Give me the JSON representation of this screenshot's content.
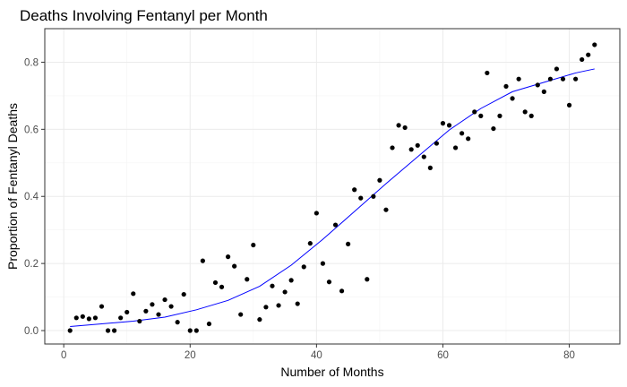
{
  "chart_data": {
    "type": "scatter",
    "title": "Deaths Involving Fentanyl per Month",
    "xlabel": "Number of Months",
    "ylabel": "Proportion of Fentanyl Deaths",
    "xlim": [
      -3,
      88
    ],
    "ylim": [
      -0.04,
      0.9
    ],
    "xticks": [
      0,
      20,
      40,
      60,
      80
    ],
    "xtick_labels": [
      "0",
      "20",
      "40",
      "60",
      "80"
    ],
    "yticks": [
      0.0,
      0.2,
      0.4,
      0.6,
      0.8
    ],
    "ytick_labels": [
      "0.0",
      "0.2",
      "0.4",
      "0.6",
      "0.8"
    ],
    "grid": true,
    "legend": "none",
    "point_color": "#000000",
    "trend_color": "#0000ff",
    "points": {
      "x": [
        1,
        2,
        3,
        4,
        5,
        6,
        7,
        8,
        9,
        10,
        11,
        12,
        13,
        14,
        15,
        16,
        17,
        18,
        19,
        20,
        21,
        22,
        23,
        24,
        25,
        26,
        27,
        28,
        29,
        30,
        31,
        32,
        33,
        34,
        35,
        36,
        37,
        38,
        39,
        40,
        41,
        42,
        43,
        44,
        45,
        46,
        47,
        48,
        49,
        50,
        51,
        52,
        53,
        54,
        55,
        56,
        57,
        58,
        59,
        60,
        61,
        62,
        63,
        64,
        65,
        66,
        67,
        68,
        69,
        70,
        71,
        72,
        73,
        74,
        75,
        76,
        77,
        78,
        79,
        80,
        81,
        82,
        83,
        84
      ],
      "y": [
        0.0,
        0.038,
        0.042,
        0.035,
        0.038,
        0.072,
        0.0,
        0.0,
        0.038,
        0.055,
        0.11,
        0.028,
        0.058,
        0.078,
        0.048,
        0.092,
        0.072,
        0.025,
        0.108,
        0.0,
        0.0,
        0.208,
        0.02,
        0.143,
        0.13,
        0.22,
        0.192,
        0.048,
        0.153,
        0.255,
        0.033,
        0.07,
        0.133,
        0.075,
        0.115,
        0.15,
        0.08,
        0.19,
        0.26,
        0.35,
        0.2,
        0.145,
        0.315,
        0.118,
        0.258,
        0.42,
        0.395,
        0.153,
        0.4,
        0.448,
        0.36,
        0.545,
        0.612,
        0.605,
        0.54,
        0.552,
        0.518,
        0.485,
        0.558,
        0.618,
        0.612,
        0.545,
        0.588,
        0.572,
        0.652,
        0.64,
        0.768,
        0.602,
        0.64,
        0.728,
        0.692,
        0.75,
        0.652,
        0.64,
        0.732,
        0.712,
        0.75,
        0.78,
        0.75,
        0.672,
        0.75,
        0.808,
        0.822,
        0.852
      ]
    },
    "trend": {
      "x": [
        1,
        6,
        11,
        16,
        21,
        26,
        31,
        36,
        41,
        46,
        51,
        56,
        61,
        66,
        71,
        76,
        81,
        84
      ],
      "y": [
        0.012,
        0.02,
        0.028,
        0.04,
        0.062,
        0.09,
        0.132,
        0.195,
        0.272,
        0.355,
        0.438,
        0.518,
        0.598,
        0.662,
        0.712,
        0.74,
        0.768,
        0.78
      ]
    }
  }
}
